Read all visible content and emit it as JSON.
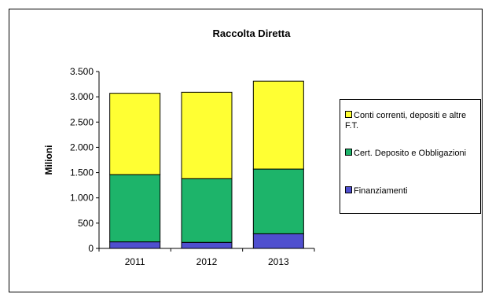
{
  "chart_data": {
    "type": "bar",
    "stacked": true,
    "title": "Raccolta Diretta",
    "xlabel": "",
    "ylabel": "Milioni",
    "categories": [
      "2011",
      "2012",
      "2013"
    ],
    "ylim": [
      0,
      3500
    ],
    "yticks": [
      0,
      500,
      1000,
      1500,
      2000,
      2500,
      3000,
      3500
    ],
    "ytick_labels": [
      "0",
      "500",
      "1.000",
      "1.500",
      "2.000",
      "2.500",
      "3.000",
      "3.500"
    ],
    "grid": false,
    "legend_position": "right",
    "series": [
      {
        "name": "Finanziamenti",
        "color": "#4f4fcf",
        "values": [
          130,
          120,
          290
        ]
      },
      {
        "name": "Cert. Deposito e Obbligazioni",
        "color": "#1db46a",
        "values": [
          1330,
          1260,
          1280
        ]
      },
      {
        "name": "Conti correnti, depositi e altre F.T.",
        "color": "#ffff33",
        "values": [
          1610,
          1710,
          1740
        ]
      }
    ]
  }
}
